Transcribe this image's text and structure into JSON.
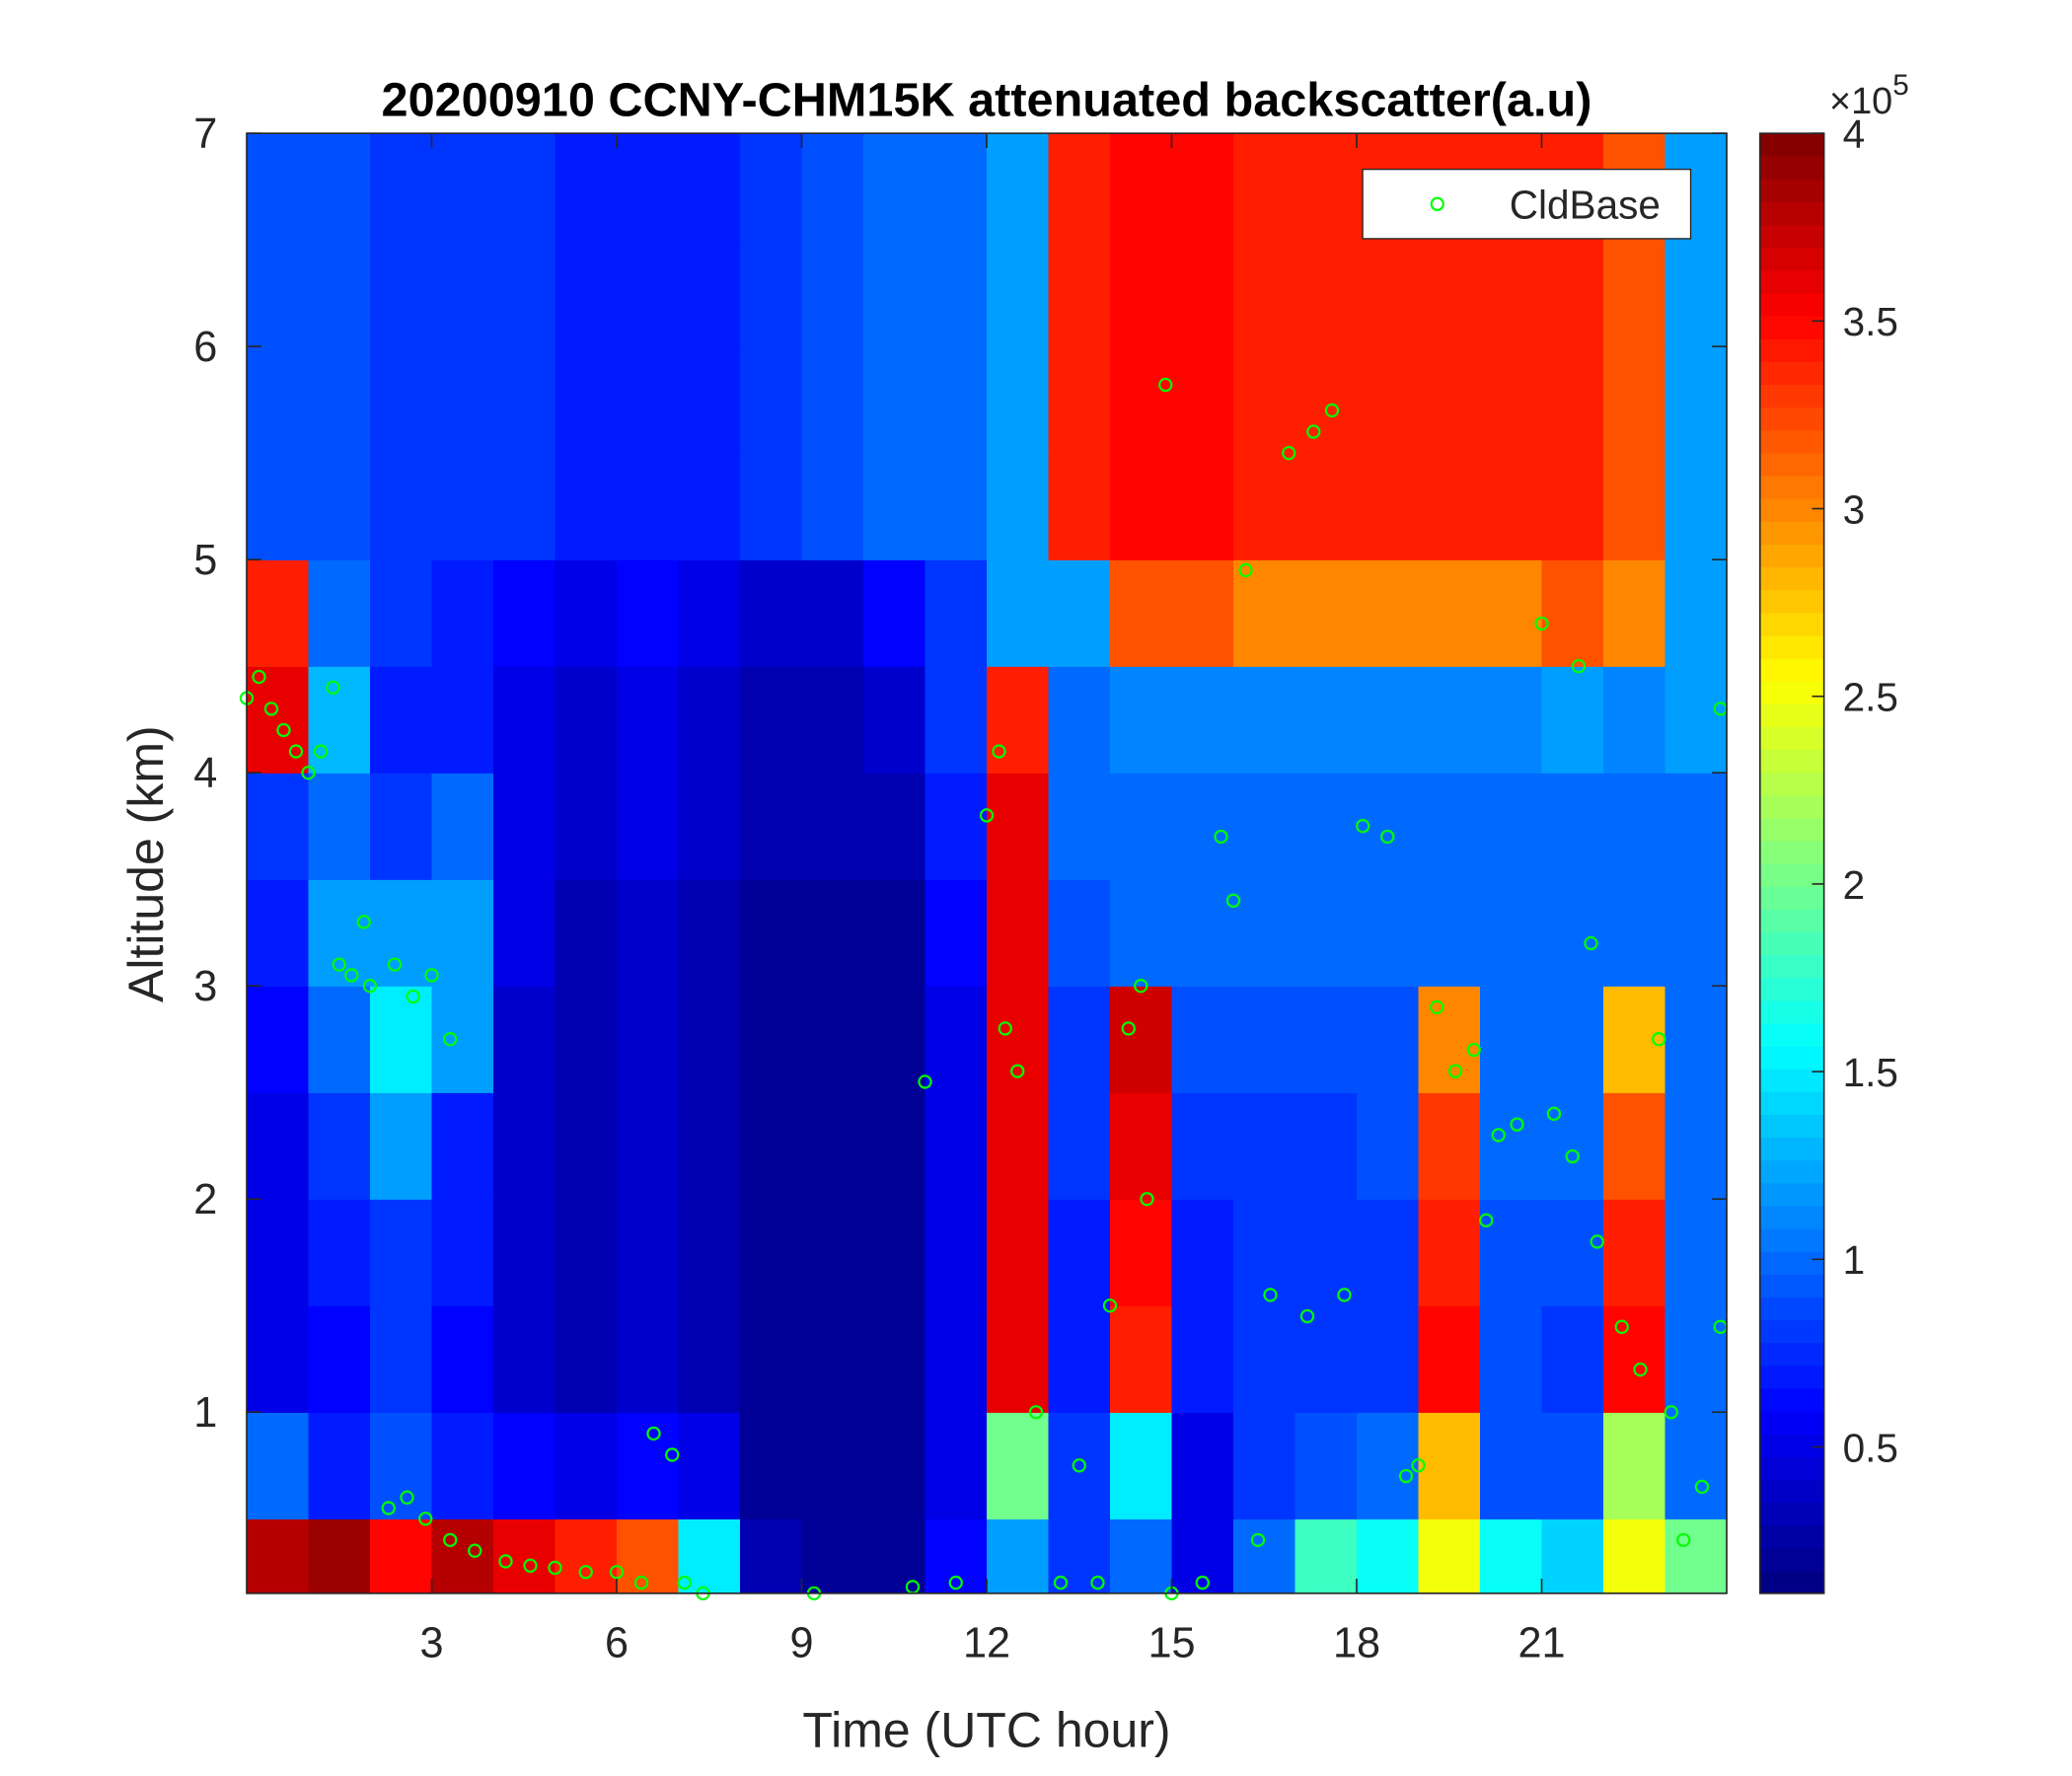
{
  "chart_data": {
    "type": "heatmap",
    "title": "20200910 CCNY-CHM15K attenuated backscatter(a.u)",
    "xlabel": "Time (UTC hour)",
    "ylabel": "Altitude (km)",
    "xlim": [
      0,
      24
    ],
    "ylim": [
      0.15,
      7
    ],
    "xticks": [
      3,
      6,
      9,
      12,
      15,
      18,
      21
    ],
    "yticks": [
      1,
      2,
      3,
      4,
      5,
      6,
      7
    ],
    "colormap": "jet",
    "clim": [
      0.11,
      4
    ],
    "colorbar_ticks": [
      0.5,
      1,
      1.5,
      2,
      2.5,
      3,
      3.5,
      4
    ],
    "colorbar_multiplier": {
      "base": "×10",
      "exponent": "5"
    },
    "x_bins": [
      0,
      1,
      2,
      3,
      4,
      5,
      6,
      7,
      8,
      9,
      10,
      11,
      12,
      13,
      14,
      15,
      16,
      17,
      18,
      19,
      20,
      21,
      22,
      23,
      24
    ],
    "y_bins": [
      0.15,
      0.5,
      1,
      1.5,
      2,
      2.5,
      3,
      3.5,
      4,
      4.5,
      5,
      5.5,
      6,
      6.5,
      7
    ],
    "z": [
      [
        3.8,
        3.9,
        3.5,
        3.8,
        3.6,
        3.4,
        3.2,
        1.5,
        0.3,
        0.2,
        0.2,
        0.6,
        1.2,
        0.8,
        1.0,
        0.5,
        1.0,
        1.8,
        1.6,
        2.5,
        1.6,
        1.4,
        2.5,
        2.0
      ],
      [
        1.0,
        0.7,
        0.9,
        0.7,
        0.6,
        0.5,
        0.6,
        0.5,
        0.2,
        0.2,
        0.2,
        0.5,
        2.0,
        0.8,
        1.5,
        0.5,
        0.8,
        0.9,
        1.0,
        2.8,
        0.9,
        0.9,
        2.2,
        1.0
      ],
      [
        0.5,
        0.6,
        0.8,
        0.6,
        0.4,
        0.3,
        0.4,
        0.3,
        0.2,
        0.2,
        0.2,
        0.5,
        3.6,
        0.7,
        3.4,
        0.7,
        0.8,
        0.8,
        0.8,
        3.5,
        0.9,
        0.8,
        3.5,
        1.0
      ],
      [
        0.5,
        0.7,
        0.8,
        0.7,
        0.4,
        0.3,
        0.4,
        0.3,
        0.2,
        0.2,
        0.2,
        0.5,
        3.6,
        0.7,
        3.5,
        0.7,
        0.8,
        0.8,
        0.8,
        3.4,
        0.9,
        0.9,
        3.4,
        1.0
      ],
      [
        0.5,
        0.8,
        1.2,
        0.7,
        0.4,
        0.3,
        0.4,
        0.3,
        0.2,
        0.2,
        0.2,
        0.5,
        3.6,
        0.8,
        3.6,
        0.8,
        0.8,
        0.8,
        0.9,
        3.3,
        1.0,
        1.0,
        3.2,
        1.0
      ],
      [
        0.6,
        1.0,
        1.5,
        1.2,
        0.4,
        0.3,
        0.4,
        0.3,
        0.2,
        0.2,
        0.2,
        0.5,
        3.6,
        0.8,
        3.7,
        0.9,
        0.9,
        0.9,
        0.9,
        3.0,
        1.0,
        1.0,
        2.8,
        1.0
      ],
      [
        0.7,
        1.2,
        1.2,
        1.2,
        0.5,
        0.3,
        0.4,
        0.3,
        0.2,
        0.2,
        0.2,
        0.6,
        3.6,
        0.9,
        1.0,
        1.0,
        1.0,
        1.0,
        1.0,
        1.0,
        1.0,
        1.0,
        1.0,
        1.0
      ],
      [
        0.8,
        1.0,
        0.8,
        1.0,
        0.5,
        0.4,
        0.5,
        0.4,
        0.3,
        0.3,
        0.3,
        0.7,
        3.6,
        1.0,
        1.0,
        1.0,
        1.0,
        1.0,
        1.0,
        1.0,
        1.0,
        1.0,
        1.0,
        1.0
      ],
      [
        3.6,
        1.3,
        0.7,
        0.7,
        0.5,
        0.4,
        0.5,
        0.4,
        0.3,
        0.3,
        0.4,
        0.8,
        3.4,
        1.0,
        1.1,
        1.1,
        1.1,
        1.1,
        1.1,
        1.1,
        1.1,
        1.2,
        1.1,
        1.2
      ],
      [
        3.4,
        1.0,
        0.8,
        0.7,
        0.6,
        0.5,
        0.6,
        0.5,
        0.4,
        0.4,
        0.6,
        0.8,
        1.2,
        1.2,
        3.2,
        3.2,
        3.0,
        3.0,
        3.0,
        3.0,
        3.0,
        3.2,
        3.0,
        1.2
      ],
      [
        0.9,
        0.9,
        0.8,
        0.8,
        0.8,
        0.7,
        0.7,
        0.7,
        0.8,
        0.9,
        1.0,
        1.0,
        1.2,
        3.4,
        3.5,
        3.5,
        3.4,
        3.4,
        3.4,
        3.4,
        3.4,
        3.4,
        3.2,
        1.2
      ],
      [
        0.9,
        0.9,
        0.8,
        0.8,
        0.8,
        0.7,
        0.7,
        0.7,
        0.8,
        0.9,
        1.0,
        1.0,
        1.2,
        3.4,
        3.5,
        3.5,
        3.4,
        3.4,
        3.4,
        3.4,
        3.4,
        3.4,
        3.2,
        1.2
      ],
      [
        0.9,
        0.9,
        0.8,
        0.8,
        0.8,
        0.7,
        0.7,
        0.7,
        0.8,
        0.9,
        1.0,
        1.0,
        1.2,
        3.4,
        3.5,
        3.5,
        3.4,
        3.4,
        3.4,
        3.4,
        3.4,
        3.4,
        3.2,
        1.2
      ],
      [
        0.9,
        0.9,
        0.8,
        0.8,
        0.8,
        0.7,
        0.7,
        0.7,
        0.8,
        0.9,
        1.0,
        1.0,
        1.2,
        3.4,
        3.5,
        3.5,
        3.4,
        3.4,
        3.4,
        3.4,
        3.4,
        3.4,
        3.2,
        1.2
      ]
    ],
    "legend": "upper right",
    "series": [
      {
        "name": "CldBase",
        "type": "scatter",
        "color": "#00ff00",
        "x": [
          0.0,
          0.2,
          0.4,
          0.6,
          0.8,
          1.0,
          1.2,
          1.4,
          1.5,
          1.7,
          1.9,
          2.0,
          2.3,
          2.6,
          2.4,
          2.7,
          3.0,
          3.3,
          2.9,
          3.3,
          3.7,
          4.2,
          4.6,
          5.0,
          5.5,
          6.0,
          6.4,
          6.6,
          6.9,
          7.1,
          7.4,
          9.2,
          10.8,
          11.0,
          11.5,
          12.0,
          12.2,
          12.3,
          12.5,
          12.8,
          13.2,
          13.5,
          13.8,
          14.0,
          14.3,
          14.5,
          14.6,
          14.9,
          15.0,
          15.5,
          15.8,
          16.0,
          16.2,
          16.4,
          16.6,
          16.9,
          17.3,
          17.6,
          17.2,
          17.8,
          18.1,
          18.5,
          18.8,
          19.0,
          19.3,
          19.6,
          19.9,
          20.3,
          20.6,
          20.1,
          21.0,
          21.2,
          21.5,
          21.6,
          21.8,
          21.9,
          22.3,
          22.6,
          22.9,
          23.1,
          23.3,
          23.6,
          23.9,
          23.9
        ],
        "y": [
          4.35,
          4.45,
          4.3,
          4.2,
          4.1,
          4.0,
          4.1,
          4.4,
          3.1,
          3.05,
          3.3,
          3.0,
          0.55,
          0.6,
          3.1,
          2.95,
          3.05,
          2.75,
          0.5,
          0.4,
          0.35,
          0.3,
          0.28,
          0.27,
          0.25,
          0.25,
          0.2,
          0.9,
          0.8,
          0.2,
          0.15,
          0.15,
          0.18,
          2.55,
          0.2,
          3.8,
          4.1,
          2.8,
          2.6,
          1.0,
          0.2,
          0.75,
          0.2,
          1.5,
          2.8,
          3.0,
          2.0,
          5.82,
          0.15,
          0.2,
          3.7,
          3.4,
          4.95,
          0.4,
          1.55,
          5.5,
          5.6,
          5.7,
          1.45,
          1.55,
          3.75,
          3.7,
          0.7,
          0.75,
          2.9,
          2.6,
          2.7,
          2.3,
          2.35,
          1.9,
          4.7,
          2.4,
          2.2,
          4.5,
          3.2,
          1.8,
          1.4,
          1.2,
          2.75,
          1.0,
          0.4,
          0.65,
          4.3,
          1.4
        ]
      }
    ]
  }
}
